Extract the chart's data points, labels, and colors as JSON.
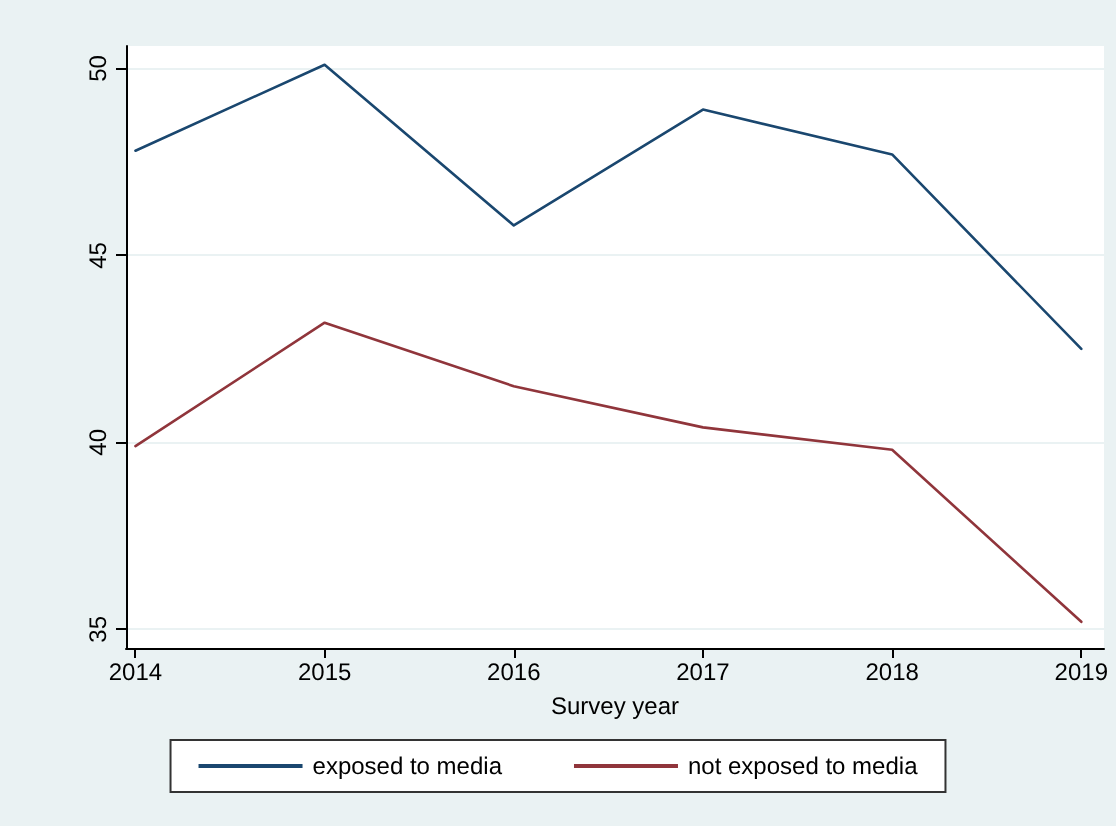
{
  "chart_data": {
    "type": "line",
    "xlabel": "Survey year",
    "x": [
      2014,
      2015,
      2016,
      2017,
      2018,
      2019
    ],
    "xlim": [
      2013.95,
      2019.12
    ],
    "xticks": [
      2014,
      2015,
      2016,
      2017,
      2018,
      2019
    ],
    "ylim": [
      34.5,
      50.6
    ],
    "yticks": [
      35,
      40,
      45,
      50
    ],
    "grid": "y",
    "legend": "bottom",
    "marker": "none",
    "line_style": "solid",
    "series": [
      {
        "name": "exposed to media",
        "color": "#1a476f",
        "values": [
          47.8,
          50.1,
          45.8,
          48.9,
          47.7,
          42.5
        ]
      },
      {
        "name": "not exposed to media",
        "color": "#90353b",
        "values": [
          39.9,
          43.2,
          41.5,
          40.4,
          39.8,
          35.2
        ]
      }
    ]
  }
}
